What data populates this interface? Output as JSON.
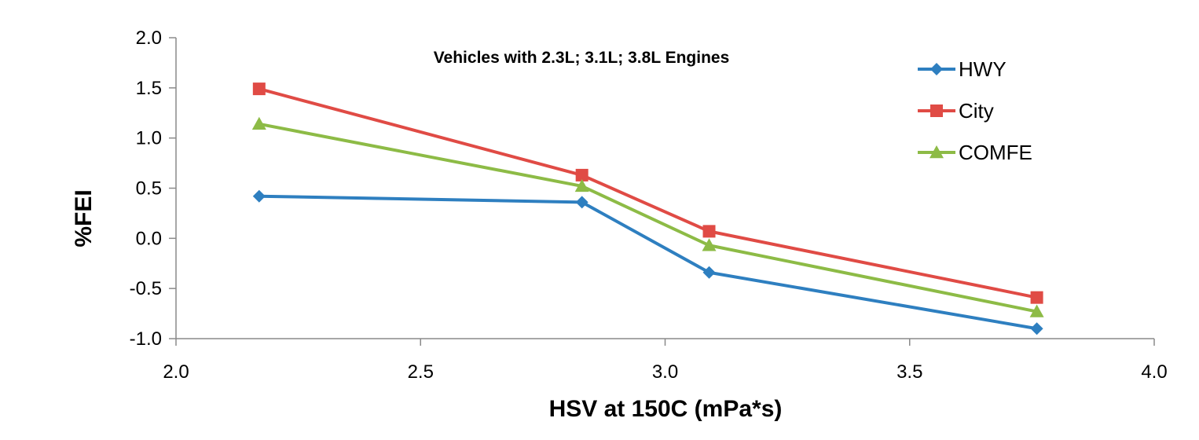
{
  "chart_data": {
    "type": "line",
    "title": "Vehicles with 2.3L; 3.1L; 3.8L Engines",
    "xlabel": "HSV at 150C (mPa*s)",
    "ylabel": "%FEI",
    "xlim": [
      2.0,
      4.0
    ],
    "ylim": [
      -1.0,
      2.0
    ],
    "x_ticks": [
      "2.0",
      "2.5",
      "3.0",
      "3.5",
      "4.0"
    ],
    "y_ticks": [
      "2.0",
      "1.5",
      "1.0",
      "0.5",
      "0.0",
      "-0.5",
      "-1.0"
    ],
    "grid": false,
    "legend_position": "top-right",
    "series": [
      {
        "name": "HWY",
        "color": "#2e7fc0",
        "marker": "diamond",
        "points": [
          [
            2.17,
            0.42
          ],
          [
            2.83,
            0.36
          ],
          [
            3.09,
            -0.34
          ],
          [
            3.76,
            -0.9
          ]
        ]
      },
      {
        "name": "City",
        "color": "#e04b45",
        "marker": "square",
        "points": [
          [
            2.17,
            1.49
          ],
          [
            2.83,
            0.63
          ],
          [
            3.09,
            0.07
          ],
          [
            3.76,
            -0.59
          ]
        ]
      },
      {
        "name": "COMFE",
        "color": "#8dbb46",
        "marker": "triangle",
        "points": [
          [
            2.17,
            1.14
          ],
          [
            2.83,
            0.52
          ],
          [
            3.09,
            -0.07
          ],
          [
            3.76,
            -0.73
          ]
        ]
      }
    ]
  }
}
